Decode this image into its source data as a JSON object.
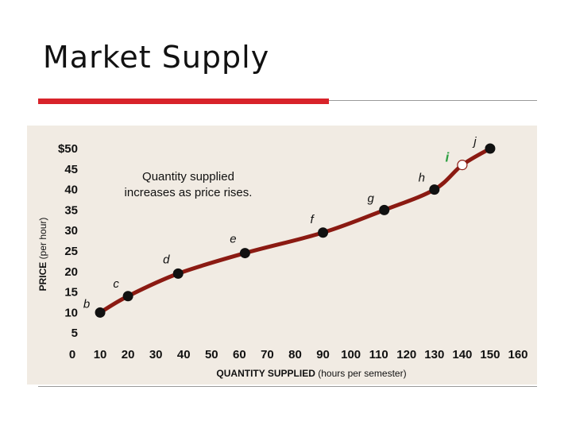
{
  "slide": {
    "title": "Market Supply"
  },
  "colors": {
    "accent_red": "#d8232a",
    "curve": "#8b1a12",
    "point": "#111111",
    "point_i": "#ffffff",
    "label_i": "#2ea043",
    "panel": "#f1ebe3"
  },
  "chart_data": {
    "type": "line",
    "title": "",
    "xlabel": "QUANTITY SUPPLIED",
    "xlabel_suffix": "(hours per semester)",
    "ylabel": "PRICE",
    "ylabel_suffix": "(per hour)",
    "xlim": [
      0,
      160
    ],
    "ylim": [
      0,
      50
    ],
    "x_ticks": [
      "0",
      "10",
      "20",
      "30",
      "40",
      "50",
      "60",
      "70",
      "80",
      "90",
      "100",
      "110",
      "120",
      "130",
      "140",
      "150",
      "160"
    ],
    "y_ticks": [
      "5",
      "10",
      "15",
      "20",
      "25",
      "30",
      "35",
      "40",
      "45",
      "$50"
    ],
    "y_tick_values": [
      5,
      10,
      15,
      20,
      25,
      30,
      35,
      40,
      45,
      50
    ],
    "annotation": [
      "Quantity supplied",
      "increases as price rises."
    ],
    "grid": false,
    "legend": "none",
    "points": [
      {
        "label": "b",
        "x": 10,
        "y": 10
      },
      {
        "label": "c",
        "x": 20,
        "y": 14
      },
      {
        "label": "d",
        "x": 38,
        "y": 19.5
      },
      {
        "label": "e",
        "x": 62,
        "y": 24.5
      },
      {
        "label": "f",
        "x": 90,
        "y": 29.5
      },
      {
        "label": "g",
        "x": 112,
        "y": 35
      },
      {
        "label": "h",
        "x": 130,
        "y": 40
      },
      {
        "label": "i",
        "x": 140,
        "y": 46,
        "hollow": true
      },
      {
        "label": "j",
        "x": 150,
        "y": 50
      }
    ]
  }
}
